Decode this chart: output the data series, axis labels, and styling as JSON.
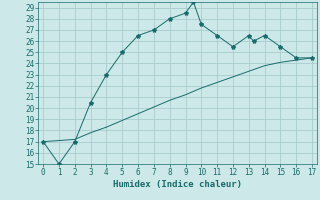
{
  "xlabel": "Humidex (Indice chaleur)",
  "ylabel": "",
  "bg_color": "#cce8e8",
  "grid_color": "#aacccc",
  "line_color": "#1a6b6b",
  "line1_x": [
    0,
    1,
    2,
    3,
    4,
    5,
    6,
    7,
    8,
    9,
    9.5,
    10,
    11,
    12,
    13,
    13.3,
    14,
    15,
    16,
    17
  ],
  "line1_y": [
    17,
    15,
    17,
    20.5,
    23,
    25,
    26.5,
    27,
    28,
    28.5,
    29.5,
    27.5,
    26.5,
    25.5,
    26.5,
    26,
    26.5,
    25.5,
    24.5,
    24.5
  ],
  "line2_x": [
    0,
    2,
    3,
    4,
    5,
    6,
    7,
    8,
    9,
    10,
    11,
    12,
    13,
    14,
    15,
    16,
    17
  ],
  "line2_y": [
    17,
    17.2,
    17.8,
    18.3,
    18.9,
    19.5,
    20.1,
    20.7,
    21.2,
    21.8,
    22.3,
    22.8,
    23.3,
    23.8,
    24.1,
    24.3,
    24.5
  ],
  "xlim": [
    -0.3,
    17.3
  ],
  "ylim": [
    15,
    29.5
  ],
  "xticks": [
    0,
    1,
    2,
    3,
    4,
    5,
    6,
    7,
    8,
    9,
    10,
    11,
    12,
    13,
    14,
    15,
    16,
    17
  ],
  "yticks": [
    15,
    16,
    17,
    18,
    19,
    20,
    21,
    22,
    23,
    24,
    25,
    26,
    27,
    28,
    29
  ]
}
